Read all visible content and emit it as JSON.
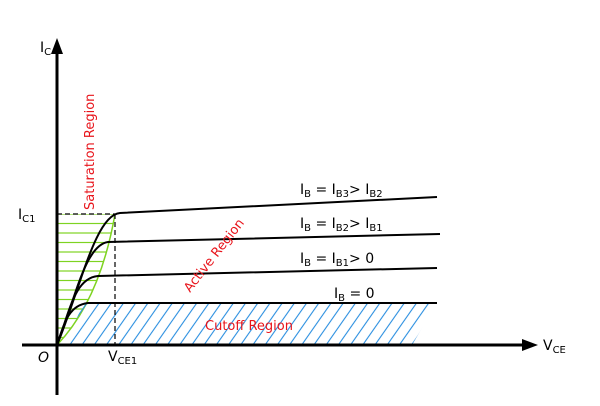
{
  "axes": {
    "y_label": "I",
    "y_label_sub": "C",
    "x_label": "V",
    "x_label_sub": "CE",
    "origin": "O",
    "ic1": "I",
    "ic1_sub": "C1",
    "vce1": "V",
    "vce1_sub": "CE1"
  },
  "curves": [
    {
      "label_parts": [
        "I",
        "B",
        " = I",
        "B3",
        "> I",
        "B2"
      ]
    },
    {
      "label_parts": [
        "I",
        "B",
        " = I",
        "B2",
        "> I",
        "B1"
      ]
    },
    {
      "label_parts": [
        "I",
        "B",
        " = I",
        "B1",
        "> 0",
        ""
      ]
    },
    {
      "label_parts": [
        "I",
        "B",
        " = 0",
        "",
        "",
        ""
      ]
    }
  ],
  "regions": {
    "saturation": "Saturation Region",
    "active": "Active Region",
    "cutoff": "Cutoff Region"
  },
  "colors": {
    "region_text": "#e8141b",
    "saturation_hatch": "#7ed321",
    "cutoff_hatch": "#2a8fe0"
  }
}
